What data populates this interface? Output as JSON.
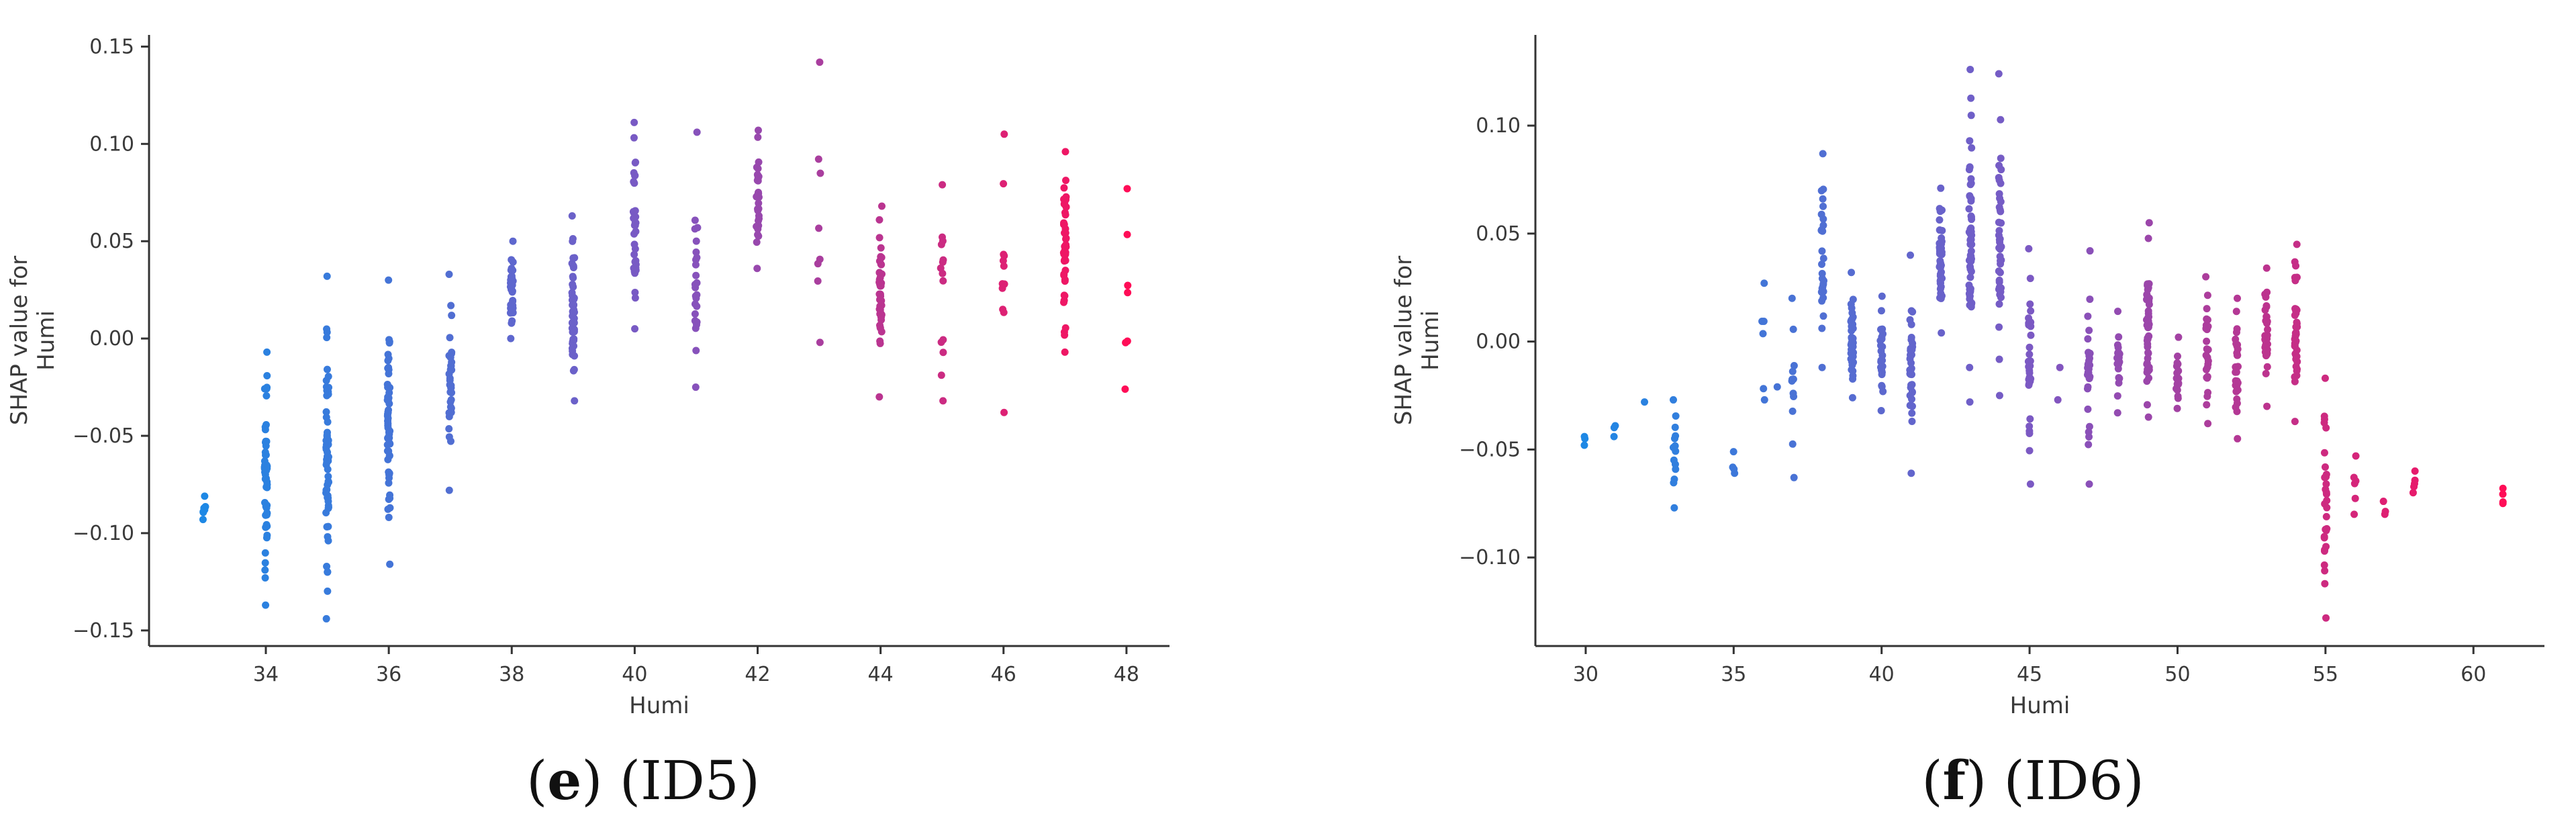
{
  "chart_data": [
    {
      "type": "scatter",
      "caption_letter": "e",
      "caption_rest": " (ID5)",
      "xlabel": "Humi",
      "ylabel_line1": "SHAP value for",
      "ylabel_line2": "Humi",
      "xlim": [
        32.1,
        48.7
      ],
      "ylim": [
        -0.158,
        0.156
      ],
      "xticks": [
        34,
        36,
        38,
        40,
        42,
        44,
        46,
        48
      ],
      "xtick_labels": [
        "34",
        "36",
        "38",
        "40",
        "42",
        "44",
        "46",
        "48"
      ],
      "yticks": [
        -0.15,
        -0.1,
        -0.05,
        0.0,
        0.05,
        0.1,
        0.15
      ],
      "ytick_labels": [
        "−0.15",
        "−0.10",
        "−0.05",
        "0.00",
        "0.05",
        "0.10",
        "0.15"
      ],
      "color_range": [
        33,
        48
      ],
      "colors": [
        "#1e88e5",
        "#7e57c2",
        "#ff0d57"
      ],
      "strips": [
        {
          "x": 33,
          "ymin": -0.093,
          "ymax": -0.081,
          "n": 10
        },
        {
          "x": 34,
          "ymin": -0.137,
          "ymax": -0.007,
          "n": 55
        },
        {
          "x": 35,
          "ymin": -0.144,
          "ymax": 0.032,
          "n": 60
        },
        {
          "x": 36,
          "ymin": -0.116,
          "ymax": 0.03,
          "n": 60
        },
        {
          "x": 37,
          "ymin": -0.078,
          "ymax": 0.033,
          "n": 35
        },
        {
          "x": 38,
          "ymin": 0.0,
          "ymax": 0.05,
          "n": 45
        },
        {
          "x": 39,
          "ymin": -0.032,
          "ymax": 0.063,
          "n": 50
        },
        {
          "x": 40,
          "ymin": 0.005,
          "ymax": 0.111,
          "n": 35
        },
        {
          "x": 41,
          "ymin": -0.025,
          "ymax": 0.106,
          "n": 25
        },
        {
          "x": 42,
          "ymin": 0.036,
          "ymax": 0.107,
          "n": 30
        },
        {
          "x": 43,
          "ymin": -0.002,
          "ymax": 0.142,
          "n": 8
        },
        {
          "x": 44,
          "ymin": -0.03,
          "ymax": 0.068,
          "n": 45
        },
        {
          "x": 45,
          "ymin": -0.032,
          "ymax": 0.079,
          "n": 14
        },
        {
          "x": 46,
          "ymin": -0.038,
          "ymax": 0.105,
          "n": 12
        },
        {
          "x": 47,
          "ymin": -0.007,
          "ymax": 0.096,
          "n": 45
        },
        {
          "x": 48,
          "ymin": -0.026,
          "ymax": 0.077,
          "n": 7
        }
      ]
    },
    {
      "type": "scatter",
      "caption_letter": "f",
      "caption_rest": " (ID6)",
      "xlabel": "Humi",
      "ylabel_line1": "SHAP value for",
      "ylabel_line2": "Humi",
      "xlim": [
        28.3,
        62.4
      ],
      "ylim": [
        -0.141,
        0.142
      ],
      "xticks": [
        30,
        35,
        40,
        45,
        50,
        55,
        60
      ],
      "xtick_labels": [
        "30",
        "35",
        "40",
        "45",
        "50",
        "55",
        "60"
      ],
      "yticks": [
        -0.1,
        -0.05,
        0.0,
        0.05,
        0.1
      ],
      "ytick_labels": [
        "−0.10",
        "−0.05",
        "0.00",
        "0.05",
        "0.10"
      ],
      "color_range": [
        30,
        61
      ],
      "colors": [
        "#1e88e5",
        "#7e57c2",
        "#ff0d57"
      ],
      "strips": [
        {
          "x": 30,
          "ymin": -0.048,
          "ymax": -0.044,
          "n": 3
        },
        {
          "x": 31,
          "ymin": -0.044,
          "ymax": -0.039,
          "n": 3
        },
        {
          "x": 32,
          "ymin": -0.028,
          "ymax": -0.027,
          "n": 1
        },
        {
          "x": 33,
          "ymin": -0.077,
          "ymax": -0.027,
          "n": 14
        },
        {
          "x": 35,
          "ymin": -0.061,
          "ymax": -0.051,
          "n": 4
        },
        {
          "x": 36,
          "ymin": -0.027,
          "ymax": 0.027,
          "n": 6
        },
        {
          "x": 36.5,
          "ymin": -0.021,
          "ymax": -0.018,
          "n": 1
        },
        {
          "x": 37,
          "ymin": -0.063,
          "ymax": 0.02,
          "n": 12
        },
        {
          "x": 38,
          "ymin": -0.012,
          "ymax": 0.087,
          "n": 30
        },
        {
          "x": 39,
          "ymin": -0.026,
          "ymax": 0.032,
          "n": 40
        },
        {
          "x": 40,
          "ymin": -0.032,
          "ymax": 0.021,
          "n": 25
        },
        {
          "x": 41,
          "ymin": -0.061,
          "ymax": 0.04,
          "n": 35
        },
        {
          "x": 42,
          "ymin": 0.004,
          "ymax": 0.071,
          "n": 45
        },
        {
          "x": 43,
          "ymin": -0.028,
          "ymax": 0.126,
          "n": 60
        },
        {
          "x": 44,
          "ymin": -0.025,
          "ymax": 0.124,
          "n": 45
        },
        {
          "x": 45,
          "ymin": -0.066,
          "ymax": 0.043,
          "n": 30
        },
        {
          "x": 46,
          "ymin": -0.027,
          "ymax": -0.012,
          "n": 2
        },
        {
          "x": 47,
          "ymin": -0.066,
          "ymax": 0.042,
          "n": 30
        },
        {
          "x": 48,
          "ymin": -0.033,
          "ymax": 0.014,
          "n": 22
        },
        {
          "x": 49,
          "ymin": -0.035,
          "ymax": 0.055,
          "n": 45
        },
        {
          "x": 50,
          "ymin": -0.031,
          "ymax": 0.002,
          "n": 20
        },
        {
          "x": 51,
          "ymin": -0.038,
          "ymax": 0.03,
          "n": 25
        },
        {
          "x": 52,
          "ymin": -0.045,
          "ymax": 0.02,
          "n": 30
        },
        {
          "x": 53,
          "ymin": -0.03,
          "ymax": 0.034,
          "n": 35
        },
        {
          "x": 54,
          "ymin": -0.037,
          "ymax": 0.045,
          "n": 40
        },
        {
          "x": 55,
          "ymin": -0.128,
          "ymax": -0.017,
          "n": 30
        },
        {
          "x": 56,
          "ymin": -0.08,
          "ymax": -0.053,
          "n": 6
        },
        {
          "x": 57,
          "ymin": -0.08,
          "ymax": -0.074,
          "n": 3
        },
        {
          "x": 58,
          "ymin": -0.07,
          "ymax": -0.06,
          "n": 5
        },
        {
          "x": 61,
          "ymin": -0.075,
          "ymax": -0.068,
          "n": 4
        }
      ]
    }
  ]
}
